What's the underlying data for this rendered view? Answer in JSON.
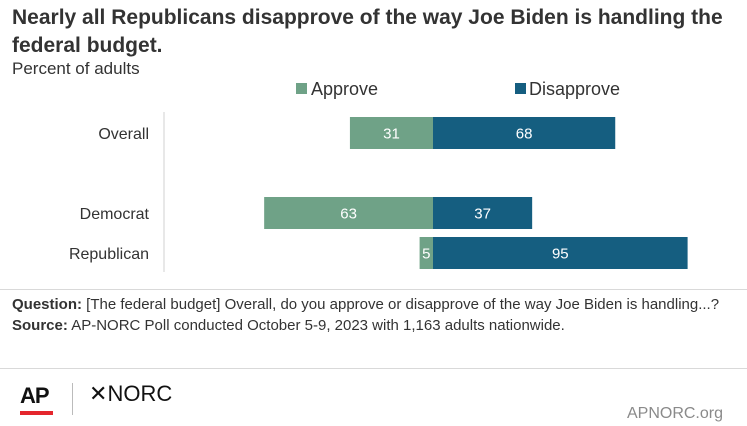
{
  "header": {
    "title": "Nearly all Republicans disapprove of the way Joe Biden is handling the federal budget.",
    "subtitle": "Percent of adults"
  },
  "colors": {
    "approve": "#6fa287",
    "disapprove": "#155e80",
    "text": "#333333"
  },
  "chart_data": {
    "type": "bar",
    "orientation": "horizontal-diverging",
    "categories": [
      "Overall",
      "Democrat",
      "Republican"
    ],
    "series": [
      {
        "name": "Approve",
        "values": [
          31,
          63,
          5
        ]
      },
      {
        "name": "Disapprove",
        "values": [
          68,
          37,
          95
        ]
      }
    ],
    "data_labels": true,
    "legend": "top",
    "grid": false
  },
  "notes": {
    "question_label": "Question:",
    "question_text": "[The federal budget] Overall, do you approve or disapprove of the way Joe Biden is handling...?",
    "source_label": "Source:",
    "source_text": "AP-NORC Poll conducted October 5-9, 2023 with 1,163 adults nationwide."
  },
  "footer": {
    "logo_ap": "AP",
    "logo_norc": "NORC",
    "website": "APNORC.org"
  }
}
